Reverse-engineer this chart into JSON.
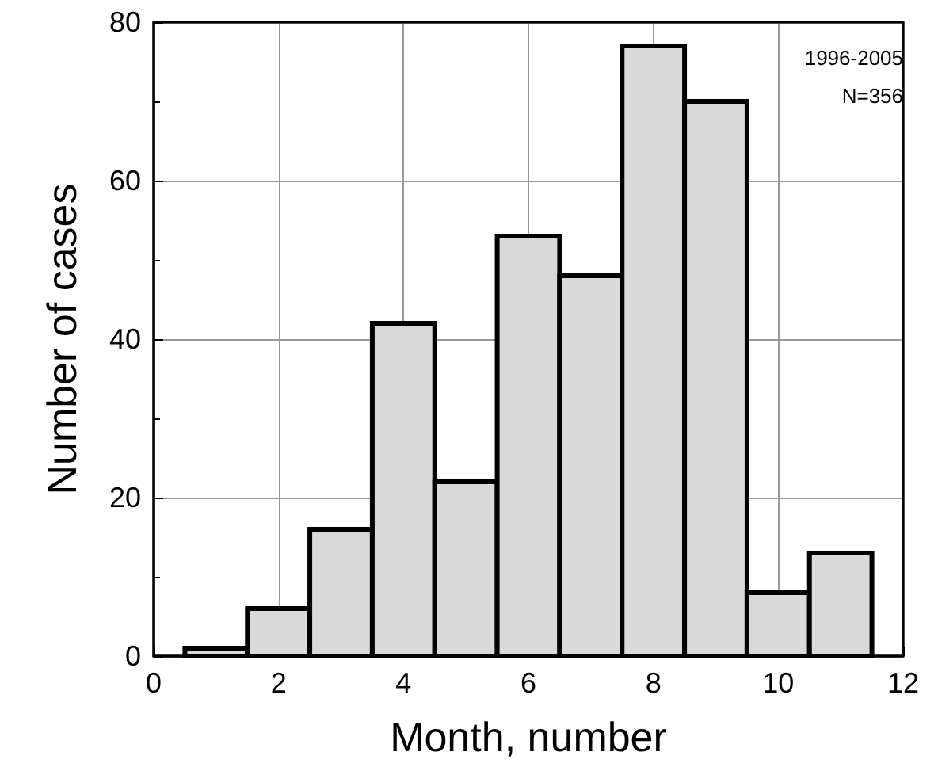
{
  "chart_data": {
    "type": "histogram",
    "xlabel": "Month, number",
    "ylabel": "Number of cases",
    "bins": [
      0.5,
      1.5,
      2.5,
      3.5,
      4.5,
      5.5,
      6.5,
      7.5,
      8.5,
      9.5,
      10.5,
      11.5
    ],
    "values": [
      1,
      6,
      16,
      42,
      22,
      53,
      48,
      77,
      70,
      8,
      13
    ],
    "color": "#d9d9d9",
    "xlim": [
      0,
      12
    ],
    "xticks": [
      0,
      2,
      4,
      6,
      8,
      10,
      12
    ],
    "ylim": [
      0,
      80
    ],
    "yticks": [
      0,
      20,
      40,
      60,
      80
    ],
    "grid": true,
    "annotations": [
      "1996-2005",
      "N=356"
    ]
  }
}
